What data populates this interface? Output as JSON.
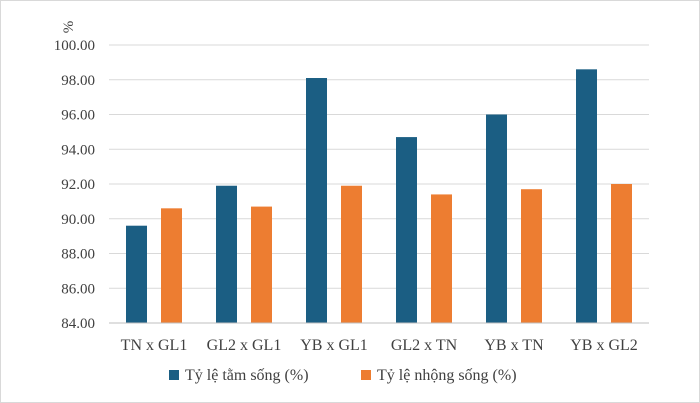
{
  "chart_data": {
    "type": "bar",
    "title": "",
    "xlabel": "",
    "ylabel": "%",
    "ylim": [
      84,
      100
    ],
    "ytick_step": 2,
    "ytick_decimals": 2,
    "grid": true,
    "legend_position": "bottom",
    "categories": [
      "TN x GL1",
      "GL2 x GL1",
      "YB x GL1",
      "GL2 x TN",
      "YB x TN",
      "YB x GL2"
    ],
    "series": [
      {
        "name": "Tỷ lệ tằm sống (%)",
        "color": "#1b5e83",
        "values": [
          89.6,
          91.9,
          98.1,
          94.7,
          96.0,
          98.6
        ]
      },
      {
        "name": "Tỷ lệ nhộng sống (%)",
        "color": "#ed7d31",
        "values": [
          90.6,
          90.7,
          91.9,
          91.4,
          91.7,
          92.0
        ]
      }
    ]
  }
}
